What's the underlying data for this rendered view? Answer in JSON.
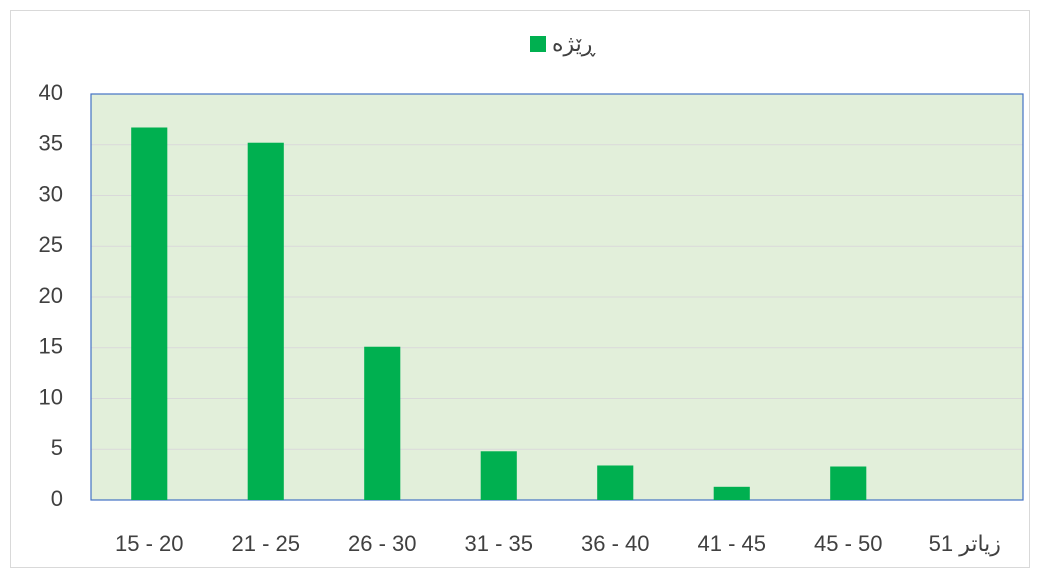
{
  "chart_data": {
    "type": "bar",
    "categories": [
      "15 - 20",
      "21 - 25",
      "26 - 30",
      "31 - 35",
      "36 - 40",
      "41 - 45",
      "45 - 50",
      "51 زیاتر"
    ],
    "series": [
      {
        "name": "ڕێژە",
        "color": "#00b050",
        "values": [
          36.7,
          35.2,
          15.1,
          4.8,
          3.4,
          1.3,
          3.3,
          0
        ]
      }
    ],
    "ylim": [
      0,
      40
    ],
    "yticks": [
      0,
      5,
      10,
      15,
      20,
      25,
      30,
      35,
      40
    ],
    "grid": true,
    "legend": "top"
  }
}
